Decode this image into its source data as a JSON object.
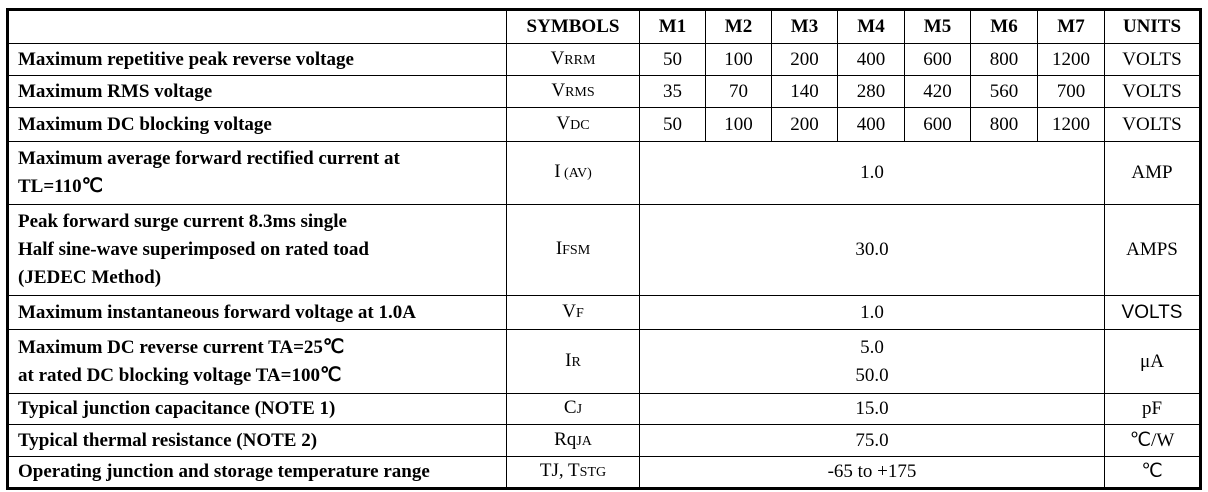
{
  "header": {
    "symbols": "SYMBOLS",
    "models": [
      "M1",
      "M2",
      "M3",
      "M4",
      "M5",
      "M6",
      "M7"
    ],
    "units": "UNITS"
  },
  "rows": [
    {
      "label": [
        "Maximum repetitive peak reverse voltage"
      ],
      "sym": "V",
      "sub": "RRM",
      "values": [
        "50",
        "100",
        "200",
        "400",
        "600",
        "800",
        "1200"
      ],
      "unit": "VOLTS"
    },
    {
      "label": [
        "Maximum RMS voltage"
      ],
      "sym": "V",
      "sub": "RMS",
      "values": [
        "35",
        "70",
        "140",
        "280",
        "420",
        "560",
        "700"
      ],
      "unit": "VOLTS"
    },
    {
      "label": [
        "Maximum DC blocking voltage"
      ],
      "sym": "V",
      "sub": "DC",
      "values": [
        "50",
        "100",
        "200",
        "400",
        "600",
        "800",
        "1200"
      ],
      "unit": "VOLTS"
    },
    {
      "label": [
        "Maximum average forward rectified current at",
        "TL=110℃"
      ],
      "sym": "I",
      "sub": " (AV)",
      "value": [
        "1.0"
      ],
      "unit": "AMP"
    },
    {
      "label": [
        "Peak forward surge current 8.3ms single",
        "Half sine-wave superimposed on rated toad",
        "(JEDEC Method)"
      ],
      "sym": "I",
      "sub": "FSM",
      "value": [
        "30.0"
      ],
      "unit": "AMPS"
    },
    {
      "label": [
        "Maximum instantaneous forward voltage at 1.0A"
      ],
      "sym": "V",
      "sub": "F",
      "value": [
        "1.0"
      ],
      "unit": "VOLTS"
    },
    {
      "label": [
        "Maximum DC reverse current TA=25℃",
        "at rated DC blocking voltage TA=100℃"
      ],
      "sym": "I",
      "sub": "R",
      "value": [
        "5.0",
        "50.0"
      ],
      "unit": "μA"
    },
    {
      "label": [
        "Typical junction capacitance (NOTE 1)"
      ],
      "sym": "C",
      "sub": "J",
      "value": [
        "15.0"
      ],
      "unit": "pF"
    },
    {
      "label": [
        "Typical thermal resistance (NOTE 2)"
      ],
      "sym": "Rq",
      "sub": "JA",
      "value": [
        "75.0"
      ],
      "unit": "℃/W"
    },
    {
      "label": [
        "Operating junction and storage temperature range"
      ],
      "sym": "TJ, T",
      "sub": "STG",
      "value": [
        "-65 to +175"
      ],
      "unit": "℃"
    }
  ]
}
